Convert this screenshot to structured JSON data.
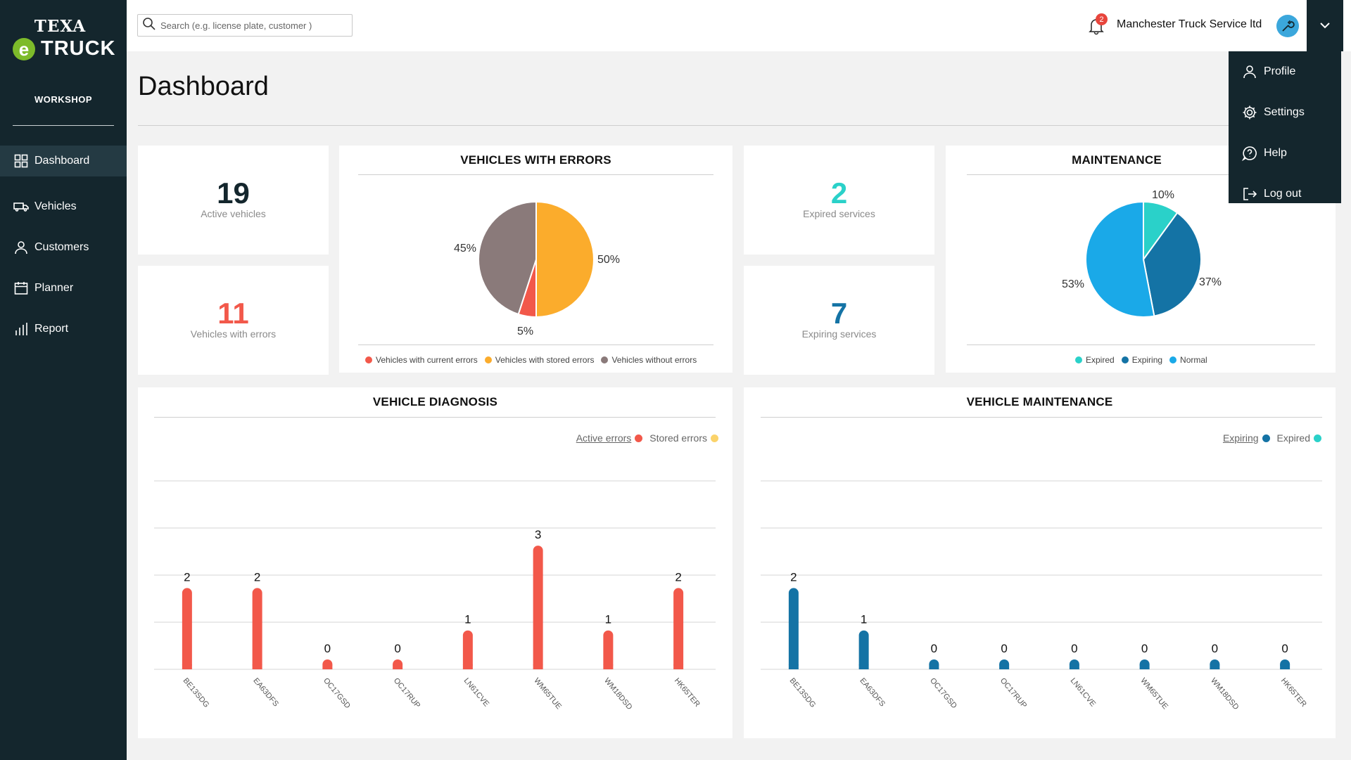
{
  "brand": {
    "top": "TEXA",
    "e": "e",
    "bottom": "TRUCK",
    "section": "WORKSHOP"
  },
  "sidebar": {
    "items": [
      {
        "label": "Dashboard",
        "icon": "grid-icon",
        "active": true
      },
      {
        "label": "Vehicles",
        "icon": "truck-icon"
      },
      {
        "label": "Customers",
        "icon": "user-icon"
      },
      {
        "label": "Planner",
        "icon": "calendar-icon"
      },
      {
        "label": "Report",
        "icon": "bars-icon"
      }
    ]
  },
  "header": {
    "search_placeholder": "Search (e.g. license plate, customer )",
    "notifications_count": "2",
    "company": "Manchester Truck Service ltd"
  },
  "user_menu": {
    "items": [
      {
        "label": "Profile",
        "icon": "user-icon"
      },
      {
        "label": "Settings",
        "icon": "gear-icon"
      },
      {
        "label": "Help",
        "icon": "help-icon"
      },
      {
        "label": "Log out",
        "icon": "logout-icon"
      }
    ]
  },
  "page": {
    "title": "Dashboard"
  },
  "stats": {
    "active_vehicles": {
      "value": "19",
      "label": "Active vehicles",
      "color": "#14262d"
    },
    "vehicles_with_errors": {
      "value": "11",
      "label": "Vehicles with errors",
      "color": "#f2584a"
    },
    "expired_services": {
      "value": "2",
      "label": "Expired services",
      "color": "#2ad1c9"
    },
    "expiring_services": {
      "value": "7",
      "label": "Expiring services",
      "color": "#1473a5"
    }
  },
  "errors_pie": {
    "title": "VEHICLES  WITH ERRORS",
    "legend": [
      "Vehicles with current errors",
      "Vehicles with stored errors",
      "Vehicles without errors"
    ],
    "labels": {
      "current": "5%",
      "stored": "50%",
      "without": "45%"
    }
  },
  "maintenance_pie": {
    "title": "MAINTENANCE",
    "legend": [
      "Expired",
      "Expiring",
      "Normal"
    ],
    "labels": {
      "expired": "10%",
      "expiring": "37%",
      "normal": "53%"
    }
  },
  "diagnosis": {
    "title": "VEHICLE  DIAGNOSIS",
    "legend": {
      "active": "Active errors",
      "stored": "Stored errors"
    }
  },
  "vehicle_maintenance": {
    "title": "VEHICLE  MAINTENANCE",
    "legend": {
      "expiring": "Expiring",
      "expired": "Expired"
    }
  },
  "chart_data": [
    {
      "type": "pie",
      "title": "VEHICLES  WITH ERRORS",
      "labels": [
        "Vehicles with current errors",
        "Vehicles with stored errors",
        "Vehicles without errors"
      ],
      "values": [
        5,
        50,
        45
      ],
      "colors": [
        "#f2584a",
        "#fbac2c",
        "#8a7a7a"
      ]
    },
    {
      "type": "pie",
      "title": "MAINTENANCE",
      "labels": [
        "Expired",
        "Expiring",
        "Normal"
      ],
      "values": [
        10,
        37,
        53
      ],
      "colors": [
        "#2ad1c9",
        "#1473a5",
        "#1aa9e8"
      ]
    },
    {
      "type": "bar",
      "title": "VEHICLE  DIAGNOSIS",
      "categories": [
        "BE13SDG",
        "EA63DFS",
        "OC17GSD",
        "OC17RUP",
        "LN61CVE",
        "WM65TUE",
        "WM18DSD",
        "HK65TER"
      ],
      "series": [
        {
          "name": "Active errors",
          "values": [
            2,
            2,
            0,
            0,
            1,
            3,
            1,
            2
          ],
          "color": "#f2584a"
        }
      ],
      "ylim": [
        0,
        5
      ],
      "grid": true
    },
    {
      "type": "bar",
      "title": "VEHICLE  MAINTENANCE",
      "categories": [
        "BE13SDG",
        "EA63DFS",
        "OC17GSD",
        "OC17RUP",
        "LN61CVE",
        "WM65TUE",
        "WM18DSD",
        "HK65TER"
      ],
      "series": [
        {
          "name": "Expiring",
          "values": [
            2,
            1,
            0,
            0,
            0,
            0,
            0,
            0
          ],
          "color": "#1473a5"
        }
      ],
      "ylim": [
        0,
        5
      ],
      "grid": true
    }
  ],
  "colors": {
    "sidebar": "#14262d",
    "active_errors": "#f2584a",
    "stored_errors": "#fbd36a",
    "expired": "#2ad1c9",
    "expiring": "#1473a5",
    "normal": "#1aa9e8"
  }
}
